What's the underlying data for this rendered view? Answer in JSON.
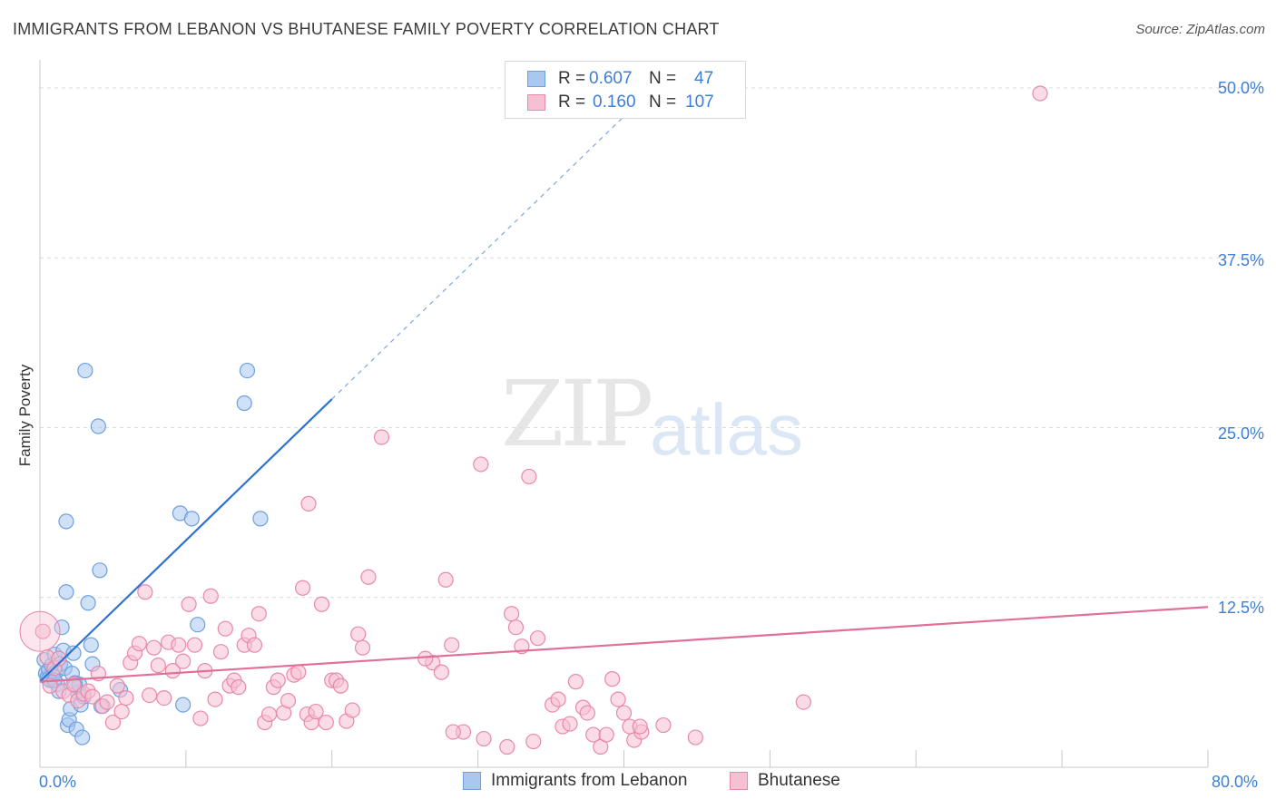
{
  "title": "IMMIGRANTS FROM LEBANON VS BHUTANESE FAMILY POVERTY CORRELATION CHART",
  "source": "Source: ZipAtlas.com",
  "watermark": {
    "a": "ZIP",
    "b": "atlas"
  },
  "legend": {
    "rows": [
      {
        "r_label": "R =",
        "r_value": "0.607",
        "n_label": "N =",
        "n_value": "47",
        "color": "#a9c8f0",
        "border": "#6f9fdc"
      },
      {
        "r_label": "R =",
        "r_value": "0.160",
        "n_label": "N =",
        "n_value": "107",
        "color": "#f7bfd2",
        "border": "#e889a9"
      }
    ]
  },
  "axis": {
    "x_min_label": "0.0%",
    "x_max_label": "80.0%",
    "y_ticks": [
      "12.5%",
      "25.0%",
      "37.5%",
      "50.0%"
    ],
    "y_label": "Family Poverty"
  },
  "bottom_legend": {
    "series1": "Immigrants from Lebanon",
    "series2": "Bhutanese"
  },
  "chart_data": {
    "type": "scatter",
    "title": "IMMIGRANTS FROM LEBANON VS BHUTANESE FAMILY POVERTY CORRELATION CHART",
    "xlabel": "",
    "ylabel": "Family Poverty",
    "xlim": [
      0,
      80
    ],
    "ylim": [
      0,
      52
    ],
    "y_gridlines": [
      12.5,
      25.0,
      37.5,
      50.0
    ],
    "series": [
      {
        "name": "Immigrants from Lebanon",
        "color": "#6f9fdc",
        "fill": "#a9c8f0",
        "trend": {
          "x0": 0,
          "y0": 6.3,
          "x1": 20,
          "y1": 27.1,
          "dashed_to_x": 40
        },
        "points": [
          [
            0.3,
            7.9
          ],
          [
            0.4,
            6.9
          ],
          [
            0.5,
            6.6
          ],
          [
            0.6,
            7.2
          ],
          [
            0.7,
            6.4
          ],
          [
            0.8,
            7.5
          ],
          [
            0.9,
            6.8
          ],
          [
            1.0,
            8.3
          ],
          [
            1.1,
            7.0
          ],
          [
            1.2,
            6.1
          ],
          [
            1.3,
            5.6
          ],
          [
            1.4,
            7.6
          ],
          [
            1.5,
            10.3
          ],
          [
            1.6,
            8.6
          ],
          [
            1.7,
            7.3
          ],
          [
            1.8,
            12.9
          ],
          [
            1.9,
            3.1
          ],
          [
            2.0,
            3.5
          ],
          [
            2.1,
            4.3
          ],
          [
            2.2,
            6.9
          ],
          [
            2.3,
            8.4
          ],
          [
            2.4,
            6.2
          ],
          [
            2.5,
            2.8
          ],
          [
            2.6,
            5.5
          ],
          [
            2.7,
            6.1
          ],
          [
            2.8,
            4.6
          ],
          [
            2.9,
            2.2
          ],
          [
            3.0,
            5.2
          ],
          [
            3.5,
            9.0
          ],
          [
            3.1,
            29.2
          ],
          [
            3.3,
            12.1
          ],
          [
            3.6,
            7.6
          ],
          [
            4.1,
            14.5
          ],
          [
            4.2,
            4.5
          ],
          [
            4.0,
            25.1
          ],
          [
            5.5,
            5.7
          ],
          [
            1.8,
            18.1
          ],
          [
            9.6,
            18.7
          ],
          [
            10.4,
            18.3
          ],
          [
            10.8,
            10.5
          ],
          [
            9.8,
            4.6
          ],
          [
            14.0,
            26.8
          ],
          [
            14.2,
            29.2
          ],
          [
            15.1,
            18.3
          ],
          [
            0.6,
            6.5
          ],
          [
            1.0,
            6.4
          ],
          [
            2.4,
            6.0
          ]
        ]
      },
      {
        "name": "Bhutanese",
        "color": "#e889a9",
        "fill": "#f7bfd2",
        "trend": {
          "x0": 0,
          "y0": 6.3,
          "x1": 80,
          "y1": 11.8
        },
        "points": [
          [
            0.2,
            10.0
          ],
          [
            0.5,
            8.1
          ],
          [
            0.7,
            6.0
          ],
          [
            1.0,
            7.3
          ],
          [
            1.3,
            8.0
          ],
          [
            1.6,
            5.6
          ],
          [
            2.0,
            5.3
          ],
          [
            2.3,
            6.1
          ],
          [
            2.6,
            4.9
          ],
          [
            3.0,
            5.4
          ],
          [
            3.3,
            5.6
          ],
          [
            3.6,
            5.2
          ],
          [
            4.0,
            6.9
          ],
          [
            4.3,
            4.5
          ],
          [
            4.6,
            4.8
          ],
          [
            5.0,
            3.3
          ],
          [
            5.3,
            6.0
          ],
          [
            5.6,
            4.1
          ],
          [
            5.9,
            5.1
          ],
          [
            6.2,
            7.7
          ],
          [
            6.5,
            8.4
          ],
          [
            6.8,
            9.1
          ],
          [
            7.2,
            12.9
          ],
          [
            7.5,
            5.3
          ],
          [
            7.8,
            8.8
          ],
          [
            8.1,
            7.5
          ],
          [
            8.5,
            5.1
          ],
          [
            8.8,
            9.2
          ],
          [
            9.1,
            7.1
          ],
          [
            9.5,
            9.0
          ],
          [
            9.8,
            7.8
          ],
          [
            10.2,
            12.0
          ],
          [
            10.6,
            9.0
          ],
          [
            11.0,
            3.6
          ],
          [
            11.3,
            7.1
          ],
          [
            11.7,
            12.6
          ],
          [
            12.0,
            5.0
          ],
          [
            12.4,
            8.5
          ],
          [
            12.7,
            10.2
          ],
          [
            13.0,
            6.0
          ],
          [
            13.3,
            6.4
          ],
          [
            13.6,
            5.9
          ],
          [
            14.0,
            9.0
          ],
          [
            14.3,
            9.7
          ],
          [
            14.7,
            9.0
          ],
          [
            15.0,
            11.3
          ],
          [
            15.4,
            3.3
          ],
          [
            15.7,
            3.9
          ],
          [
            16.0,
            5.9
          ],
          [
            16.3,
            6.4
          ],
          [
            16.7,
            4.0
          ],
          [
            17.0,
            4.9
          ],
          [
            17.4,
            6.8
          ],
          [
            17.7,
            7.0
          ],
          [
            18.0,
            13.2
          ],
          [
            18.3,
            3.9
          ],
          [
            18.6,
            3.3
          ],
          [
            18.9,
            4.1
          ],
          [
            19.3,
            12.0
          ],
          [
            19.6,
            3.3
          ],
          [
            20.0,
            6.4
          ],
          [
            20.3,
            6.4
          ],
          [
            20.6,
            6.0
          ],
          [
            21.0,
            3.4
          ],
          [
            21.4,
            4.2
          ],
          [
            21.8,
            9.8
          ],
          [
            22.1,
            8.8
          ],
          [
            22.5,
            14.0
          ],
          [
            18.4,
            19.4
          ],
          [
            23.4,
            24.3
          ],
          [
            26.9,
            7.7
          ],
          [
            27.5,
            7.0
          ],
          [
            27.8,
            13.8
          ],
          [
            28.2,
            9.0
          ],
          [
            29.0,
            2.6
          ],
          [
            30.4,
            2.1
          ],
          [
            30.2,
            22.3
          ],
          [
            32.3,
            11.3
          ],
          [
            32.6,
            10.3
          ],
          [
            33.0,
            8.9
          ],
          [
            33.5,
            21.4
          ],
          [
            32.0,
            1.5
          ],
          [
            34.1,
            9.5
          ],
          [
            33.8,
            1.9
          ],
          [
            35.1,
            4.6
          ],
          [
            35.5,
            5.0
          ],
          [
            35.8,
            3.0
          ],
          [
            36.3,
            3.2
          ],
          [
            36.7,
            6.3
          ],
          [
            37.2,
            4.4
          ],
          [
            37.9,
            2.4
          ],
          [
            38.4,
            1.5
          ],
          [
            38.8,
            2.4
          ],
          [
            39.2,
            6.5
          ],
          [
            39.6,
            5.0
          ],
          [
            40.0,
            4.0
          ],
          [
            40.4,
            3.0
          ],
          [
            40.7,
            2.0
          ],
          [
            41.2,
            2.6
          ],
          [
            42.7,
            3.1
          ],
          [
            44.9,
            2.2
          ],
          [
            52.3,
            4.8
          ],
          [
            68.5,
            49.6
          ],
          [
            41.1,
            3.0
          ],
          [
            37.5,
            4.0
          ],
          [
            28.3,
            2.6
          ],
          [
            26.4,
            8.0
          ]
        ]
      }
    ]
  }
}
